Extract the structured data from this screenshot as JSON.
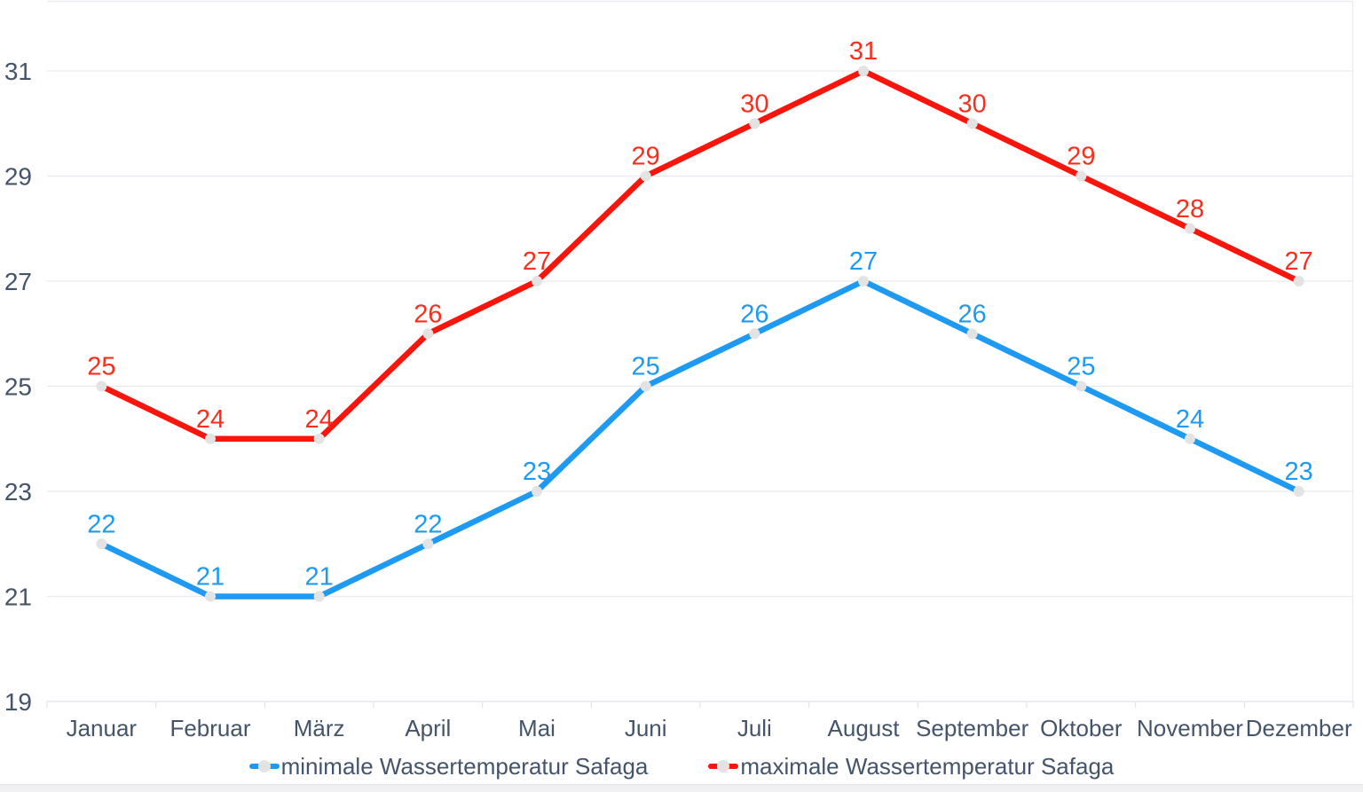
{
  "chart_data": {
    "type": "line",
    "categories": [
      "Januar",
      "Februar",
      "März",
      "April",
      "Mai",
      "Juni",
      "Juli",
      "August",
      "September",
      "Oktober",
      "November",
      "Dezember"
    ],
    "series": [
      {
        "name": "minimale Wassertemperatur Safaga",
        "values": [
          22,
          21,
          21,
          22,
          23,
          25,
          26,
          27,
          26,
          25,
          24,
          23
        ],
        "color": "#1e9af2",
        "label_color": "#1e9af2"
      },
      {
        "name": "maximale Wassertemperatur Safaga",
        "values": [
          25,
          24,
          24,
          26,
          27,
          29,
          30,
          31,
          30,
          29,
          28,
          27
        ],
        "color": "#f8150c",
        "label_color": "#fa2e1c"
      }
    ],
    "y_ticks": [
      19,
      21,
      23,
      25,
      27,
      29,
      31
    ],
    "ylim": [
      19,
      32.3
    ],
    "grid": "horizontal",
    "legend_position": "bottom",
    "marker_color": "#e3e3e3",
    "axis_text_color": "#44546a",
    "grid_color": "#e7eaf0",
    "axis_line_color": "#dfe2e9"
  }
}
